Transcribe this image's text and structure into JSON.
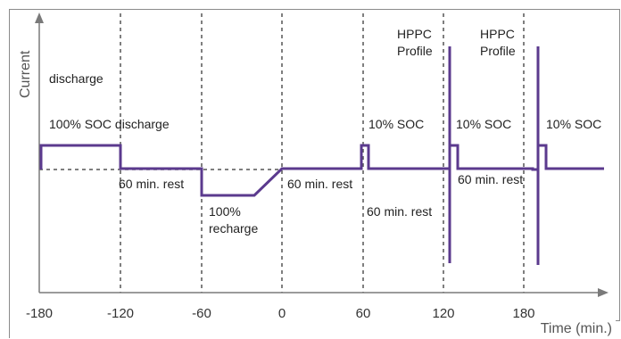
{
  "diagram": {
    "y_axis_label": "Current",
    "x_axis_label": "Time (min.)",
    "x_ticks": [
      "-180",
      "-120",
      "-60",
      "0",
      "60",
      "120",
      "180"
    ],
    "annotations": {
      "discharge": "discharge",
      "soc100_discharge": "100% SOC discharge",
      "rest1": "60 min. rest",
      "recharge_a": "100%",
      "recharge_b": "recharge",
      "rest2": "60 min. rest",
      "soc10_a": "10% SOC",
      "rest3": "60 min. rest",
      "hppc1_a": "HPPC",
      "hppc1_b": "Profile",
      "soc10_b": "10% SOC",
      "rest4": "60 min. rest",
      "hppc2_a": "HPPC",
      "hppc2_b": "Profile",
      "soc10_c": "10% SOC"
    },
    "colors": {
      "profile": "#5b3a8e",
      "axis": "#7a7a7a",
      "gridline": "#555555",
      "border": "#8a8a8a"
    }
  }
}
